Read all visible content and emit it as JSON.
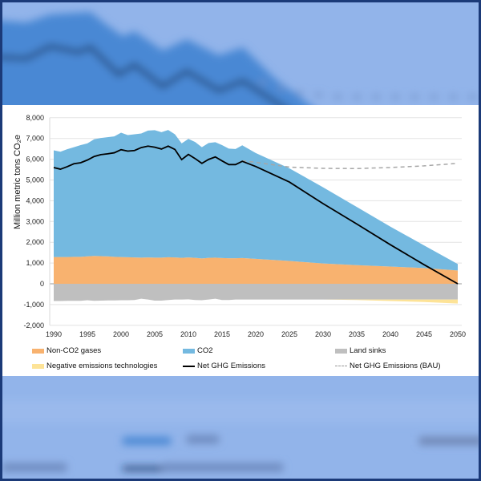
{
  "chart_data": {
    "type": "area",
    "ylabel": "Million metric tons CO₂e",
    "ylim": [
      -2000,
      8000
    ],
    "xlim": [
      1990,
      2050
    ],
    "yticks": [
      "8,000",
      "7,000",
      "6,000",
      "5,000",
      "4,000",
      "3,000",
      "2,000",
      "1,000",
      "0",
      "-1,000",
      "-2,000"
    ],
    "ytick_values": [
      8000,
      7000,
      6000,
      5000,
      4000,
      3000,
      2000,
      1000,
      0,
      -1000,
      -2000
    ],
    "xticks": [
      "1990",
      "1995",
      "2000",
      "2005",
      "2010",
      "2015",
      "2020",
      "2025",
      "2030",
      "2035",
      "2040",
      "2045",
      "2050"
    ],
    "grid": true,
    "legend_position": "bottom",
    "x": [
      1990,
      1991,
      1992,
      1993,
      1994,
      1995,
      1996,
      1997,
      1998,
      1999,
      2000,
      2001,
      2002,
      2003,
      2004,
      2005,
      2006,
      2007,
      2008,
      2009,
      2010,
      2011,
      2012,
      2013,
      2014,
      2015,
      2016,
      2017,
      2018,
      2020,
      2025,
      2030,
      2035,
      2040,
      2045,
      2050
    ],
    "series": [
      {
        "name": "Non-CO2 gases",
        "kind": "stacked-area",
        "color": "#f8b26f",
        "values": [
          1290,
          1290,
          1290,
          1300,
          1300,
          1320,
          1340,
          1330,
          1320,
          1300,
          1290,
          1280,
          1270,
          1260,
          1270,
          1260,
          1260,
          1280,
          1270,
          1250,
          1270,
          1250,
          1220,
          1250,
          1260,
          1240,
          1230,
          1230,
          1240,
          1200,
          1100,
          980,
          900,
          830,
          760,
          640
        ]
      },
      {
        "name": "CO2",
        "kind": "stacked-area",
        "color": "#74b9e0",
        "values": [
          5140,
          5070,
          5190,
          5280,
          5380,
          5440,
          5620,
          5690,
          5740,
          5800,
          5990,
          5880,
          5930,
          5980,
          6110,
          6140,
          6040,
          6130,
          5930,
          5510,
          5710,
          5580,
          5360,
          5530,
          5560,
          5440,
          5280,
          5260,
          5430,
          5100,
          4460,
          3670,
          2800,
          1920,
          1090,
          310
        ]
      },
      {
        "name": "Land sinks",
        "kind": "stacked-area-negative",
        "color": "#bfbfbf",
        "values": [
          -830,
          -830,
          -820,
          -820,
          -820,
          -790,
          -820,
          -810,
          -800,
          -800,
          -790,
          -790,
          -780,
          -720,
          -760,
          -810,
          -810,
          -780,
          -760,
          -760,
          -750,
          -780,
          -790,
          -760,
          -720,
          -780,
          -780,
          -760,
          -760,
          -760,
          -760,
          -760,
          -760,
          -760,
          -760,
          -760
        ]
      },
      {
        "name": "Negative emissions technologies",
        "kind": "stacked-area-negative",
        "color": "#fde397",
        "values": [
          0,
          0,
          0,
          0,
          0,
          0,
          0,
          0,
          0,
          0,
          0,
          0,
          0,
          0,
          0,
          0,
          0,
          0,
          0,
          0,
          0,
          0,
          0,
          0,
          0,
          0,
          0,
          0,
          0,
          0,
          0,
          0,
          -20,
          -70,
          -120,
          -190
        ]
      },
      {
        "name": "Net GHG Emissions",
        "kind": "line",
        "color": "#000000",
        "values": [
          5600,
          5520,
          5640,
          5780,
          5830,
          5960,
          6130,
          6220,
          6260,
          6310,
          6460,
          6390,
          6420,
          6560,
          6630,
          6580,
          6490,
          6630,
          6470,
          5980,
          6230,
          6030,
          5800,
          5990,
          6110,
          5920,
          5740,
          5740,
          5900,
          5650,
          4900,
          3860,
          2880,
          1880,
          920,
          0
        ]
      },
      {
        "name": "Net GHG Emissions (BAU)",
        "kind": "dashed-line",
        "color": "#a6a6a6",
        "values": [
          null,
          null,
          null,
          null,
          null,
          null,
          null,
          null,
          null,
          null,
          null,
          null,
          null,
          null,
          null,
          null,
          null,
          null,
          null,
          null,
          null,
          null,
          null,
          null,
          null,
          null,
          null,
          null,
          5920,
          5850,
          5620,
          5560,
          5550,
          5600,
          5680,
          5800
        ]
      }
    ]
  },
  "legend": [
    {
      "label": "Non-CO2 gases",
      "swatch": "area",
      "color": "#f8b26f"
    },
    {
      "label": "CO2",
      "swatch": "area",
      "color": "#74b9e0"
    },
    {
      "label": "Land sinks",
      "swatch": "area",
      "color": "#bfbfbf"
    },
    {
      "label": "Negative emissions technologies",
      "swatch": "area",
      "color": "#fde397"
    },
    {
      "label": "Net GHG Emissions",
      "swatch": "line",
      "color": "#000000"
    },
    {
      "label": "Net GHG Emissions (BAU)",
      "swatch": "dashed",
      "color": "#a6a6a6"
    }
  ],
  "colors": {
    "frame": "#1b3a78",
    "background": "#92b4ea",
    "blurred_area": "#4a88d4"
  }
}
